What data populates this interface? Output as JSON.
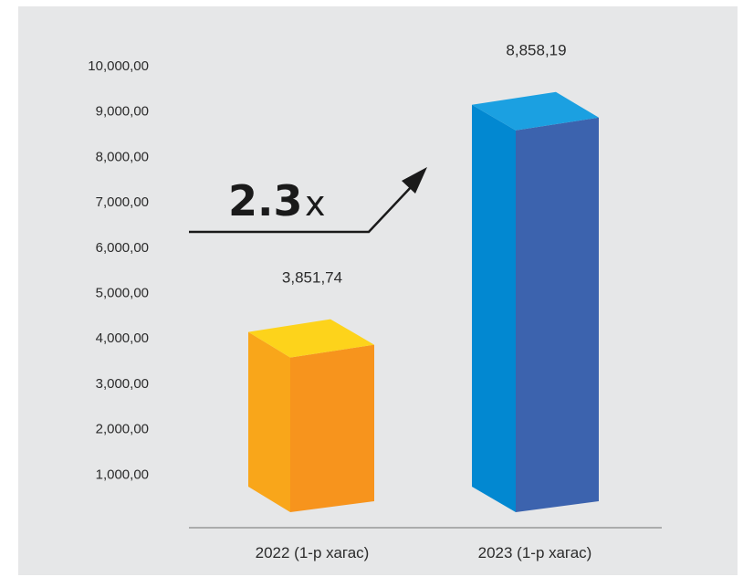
{
  "chart_data": {
    "type": "bar",
    "title": "",
    "xlabel": "",
    "ylabel": "",
    "categories": [
      "2022 (1-р хагас)",
      "2023 (1-р хагас)"
    ],
    "values": [
      3851.74,
      8858.19
    ],
    "value_labels": [
      "3,851,74",
      "8,858,19"
    ],
    "y_ticks": [
      1000,
      2000,
      3000,
      4000,
      5000,
      6000,
      7000,
      8000,
      9000,
      10000
    ],
    "y_tick_labels": [
      "1,000,00",
      "2,000,00",
      "3,000,00",
      "4,000,00",
      "5,000,00",
      "6,000,00",
      "7,000,00",
      "8,000,00",
      "9,000,00",
      "10,000,00"
    ],
    "ylim": [
      0,
      10000
    ],
    "grid": false,
    "style": "3d-box",
    "bar_colors": [
      {
        "front": "#f7941d",
        "side": "#f9a61a",
        "top": "#fdd31b"
      },
      {
        "front": "#3c63ae",
        "side": "#0288d1",
        "top": "#1ba0e1"
      }
    ],
    "annotation": {
      "multiplier_number": "2.3",
      "multiplier_suffix": "x",
      "arrow": "up-right"
    }
  },
  "colors": {
    "background": "#e6e7e8",
    "axis": "#888888",
    "text": "#2b2b2b"
  }
}
